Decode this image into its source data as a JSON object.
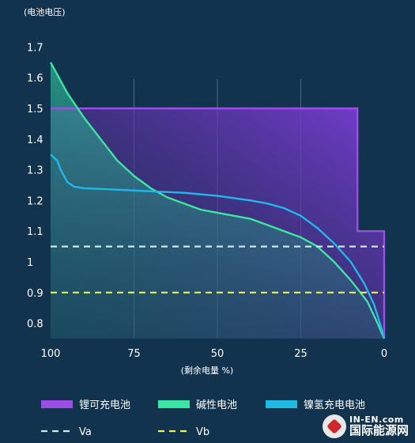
{
  "chart_data": {
    "type": "line",
    "ylabel": "(电池电压)",
    "xlabel": "(剩余电量 %)",
    "xlim": [
      100,
      0
    ],
    "ylim": [
      0.75,
      1.75
    ],
    "x_ticks": [
      100,
      75,
      50,
      25,
      0
    ],
    "y_ticks": [
      0.8,
      0.9,
      1,
      1.1,
      1.2,
      1.3,
      1.4,
      1.5,
      1.6,
      1.7
    ],
    "vertical_grid": true,
    "legend_position": "bottom",
    "series": [
      {
        "name": "锂可充电池",
        "color": "#9b4ee6",
        "style": "area-step",
        "points": [
          [
            100,
            1.5
          ],
          [
            8,
            1.5
          ],
          [
            8,
            1.1
          ],
          [
            0,
            1.1
          ],
          [
            0,
            0.75
          ]
        ]
      },
      {
        "name": "碱性电池",
        "color": "#3ce6a0",
        "style": "area",
        "points": [
          [
            100,
            1.65
          ],
          [
            95,
            1.55
          ],
          [
            90,
            1.47
          ],
          [
            85,
            1.4
          ],
          [
            80,
            1.33
          ],
          [
            75,
            1.28
          ],
          [
            70,
            1.24
          ],
          [
            65,
            1.21
          ],
          [
            60,
            1.19
          ],
          [
            55,
            1.17
          ],
          [
            50,
            1.16
          ],
          [
            45,
            1.15
          ],
          [
            40,
            1.14
          ],
          [
            35,
            1.12
          ],
          [
            30,
            1.1
          ],
          [
            25,
            1.08
          ],
          [
            20,
            1.05
          ],
          [
            15,
            1.0
          ],
          [
            10,
            0.94
          ],
          [
            5,
            0.87
          ],
          [
            2,
            0.8
          ],
          [
            0,
            0.75
          ]
        ]
      },
      {
        "name": "镍氢充电电池",
        "color": "#20b8e8",
        "style": "line",
        "points": [
          [
            100,
            1.35
          ],
          [
            98,
            1.33
          ],
          [
            97,
            1.3
          ],
          [
            95,
            1.26
          ],
          [
            93,
            1.245
          ],
          [
            90,
            1.24
          ],
          [
            80,
            1.235
          ],
          [
            70,
            1.23
          ],
          [
            60,
            1.225
          ],
          [
            50,
            1.215
          ],
          [
            40,
            1.2
          ],
          [
            35,
            1.19
          ],
          [
            30,
            1.175
          ],
          [
            25,
            1.15
          ],
          [
            20,
            1.11
          ],
          [
            15,
            1.06
          ],
          [
            10,
            1.0
          ],
          [
            6,
            0.93
          ],
          [
            3,
            0.86
          ],
          [
            1,
            0.79
          ],
          [
            0,
            0.75
          ]
        ]
      }
    ],
    "reference_lines": [
      {
        "name": "Va",
        "y": 1.05,
        "color": "#c9e8f2"
      },
      {
        "name": "Vb",
        "y": 0.9,
        "color": "#e8f060"
      }
    ]
  },
  "watermark": {
    "top": "IN-EN.com",
    "bottom": "国际能源网"
  }
}
